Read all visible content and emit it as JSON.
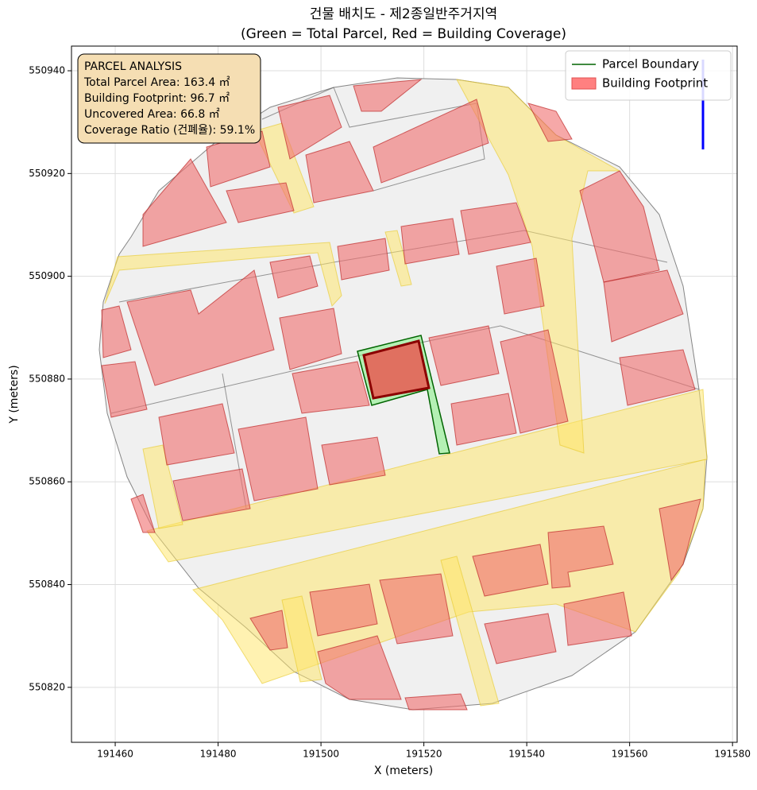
{
  "chart_data": {
    "type": "map",
    "title": [
      "건물 배치도 - 제2종일반주거지역",
      "(Green = Total Parcel, Red = Building Coverage)"
    ],
    "xlabel": "X (meters)",
    "ylabel": "Y (meters)",
    "xlim": [
      191451.5,
      191580.9
    ],
    "ylim": [
      550809.3,
      550944.8
    ],
    "xticks": [
      191460,
      191480,
      191500,
      191520,
      191540,
      191560,
      191580
    ],
    "yticks": [
      550820,
      550840,
      550860,
      550880,
      550900,
      550920,
      550940
    ],
    "grid": true,
    "legend_position": "upper right",
    "legend": [
      {
        "name": "Parcel Boundary",
        "color": "#006400"
      },
      {
        "name": "Building Footprint",
        "color": "#ff8080"
      }
    ],
    "annotation": [
      "PARCEL ANALYSIS",
      "Total Parcel Area: 163.4 ㎡",
      "Building Footprint: 96.7 ㎡",
      "Uncovered Area: 66.8 ㎡",
      "Coverage Ratio (건폐율): 59.1%"
    ]
  }
}
